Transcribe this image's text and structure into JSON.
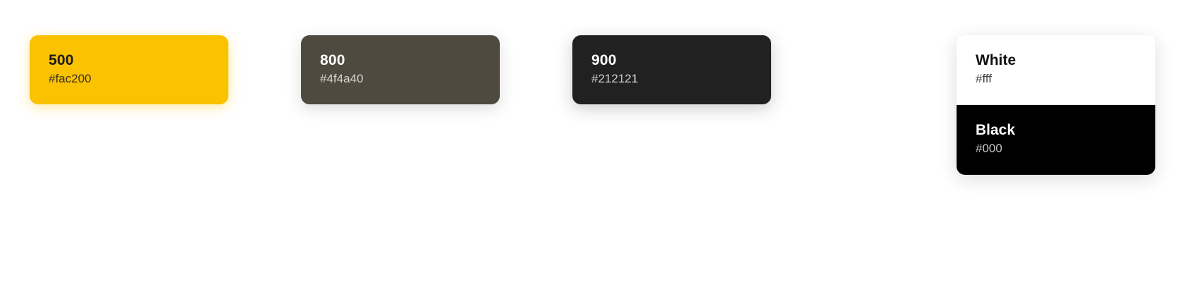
{
  "swatches": [
    {
      "name": "500",
      "hex": "#fac200",
      "color": "#fac200"
    },
    {
      "name": "800",
      "hex": "#4f4a40",
      "color": "#4f4a40"
    },
    {
      "name": "900",
      "hex": "#212121",
      "color": "#212121"
    }
  ],
  "base_colors": [
    {
      "name": "White",
      "hex": "#fff",
      "color": "#ffffff"
    },
    {
      "name": "Black",
      "hex": "#000",
      "color": "#000000"
    }
  ]
}
